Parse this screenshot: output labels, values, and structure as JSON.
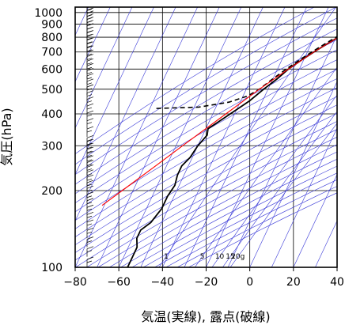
{
  "chart_data": {
    "type": "line",
    "title": "",
    "xlabel": "気温(実線), 露点(破線)",
    "ylabel": "気圧(hPa)",
    "xlim": [
      -80,
      40
    ],
    "ylim": [
      1050,
      100
    ],
    "y_scale": "log",
    "x_ticks": [
      "−80",
      "−60",
      "−40",
      "−20",
      "0",
      "20",
      "40"
    ],
    "x_tick_values": [
      -80,
      -60,
      -40,
      -20,
      0,
      20,
      40
    ],
    "y_ticks": [
      "100",
      "200",
      "300",
      "400",
      "500",
      "600",
      "700",
      "800",
      "900",
      "1000"
    ],
    "y_tick_values": [
      100,
      200,
      300,
      400,
      500,
      600,
      700,
      800,
      900,
      1000
    ],
    "mixing_ratio_labels": [
      "1",
      "5",
      "10",
      "15",
      "20g"
    ],
    "mixing_ratio_values": [
      1,
      5,
      10,
      15,
      20
    ],
    "grid": true,
    "colors": {
      "temperature": "#000000",
      "dewpoint": "#000000",
      "parcel": "#ff0000",
      "isopleths": "#3a3ad8",
      "grid": "#000000"
    },
    "series": [
      {
        "style": "solid",
        "points": [
          [
            7,
            1000
          ],
          [
            4,
            950
          ],
          [
            0,
            900
          ],
          [
            -4,
            850
          ],
          [
            -9,
            800
          ],
          [
            -13,
            750
          ],
          [
            -17,
            700
          ],
          [
            -21,
            650
          ],
          [
            -25,
            600
          ],
          [
            -28,
            550
          ],
          [
            -32,
            500
          ],
          [
            -36,
            450
          ],
          [
            -42,
            400
          ],
          [
            -46,
            370
          ],
          [
            -49,
            350
          ],
          [
            -48,
            330
          ],
          [
            -50,
            300
          ],
          [
            -51,
            270
          ],
          [
            -53,
            250
          ],
          [
            -53,
            230
          ],
          [
            -52,
            210
          ],
          [
            -53,
            190
          ],
          [
            -53,
            170
          ],
          [
            -55,
            150
          ],
          [
            -58,
            140
          ],
          [
            -58,
            130
          ],
          [
            -56,
            120
          ],
          [
            -56,
            110
          ],
          [
            -56,
            100
          ]
        ]
      },
      {
        "style": "dashed",
        "points": [
          [
            5,
            1000
          ],
          [
            3,
            950
          ],
          [
            -1,
            900
          ],
          [
            -5,
            850
          ],
          [
            -10,
            800
          ],
          [
            -14,
            750
          ],
          [
            -18,
            700
          ],
          [
            -22,
            650
          ],
          [
            -26,
            600
          ],
          [
            -30,
            550
          ],
          [
            -34,
            500
          ],
          [
            -38,
            470
          ],
          [
            -45,
            445
          ],
          [
            -58,
            425
          ],
          [
            -78,
            420
          ]
        ]
      },
      {
        "style": "parcel",
        "points": [
          [
            8,
            1000
          ],
          [
            0,
            900
          ],
          [
            -9,
            800
          ],
          [
            -17,
            700
          ],
          [
            -25,
            600
          ],
          [
            -34,
            500
          ],
          [
            -44,
            400
          ],
          [
            -57,
            300
          ],
          [
            -65,
            250
          ],
          [
            -75,
            200
          ],
          [
            -81,
            175
          ]
        ]
      }
    ]
  }
}
